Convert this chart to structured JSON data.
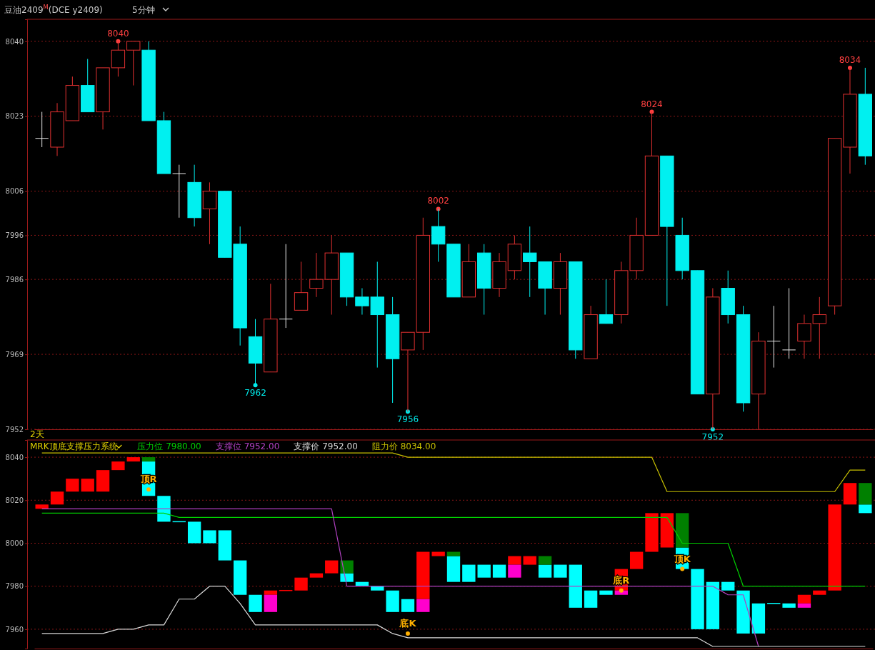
{
  "chart_data": [
    {
      "type": "candlestick",
      "title": "豆油2409$^{M}$(DCE y2409)",
      "subtitle": "5分钟",
      "categories": [
        null,
        null,
        null,
        null,
        null,
        null,
        null,
        null,
        null,
        null,
        null,
        null,
        null,
        null,
        null,
        null,
        null,
        null,
        null,
        null,
        null,
        null,
        null,
        null,
        null,
        null,
        null,
        null,
        null,
        null,
        null,
        null,
        null,
        null,
        null,
        null,
        null,
        null,
        null,
        null,
        null,
        null,
        null,
        null,
        null,
        null,
        null,
        null,
        null,
        null,
        null,
        null,
        null,
        null,
        null
      ],
      "ylim": [
        7952,
        8045
      ],
      "yticks": [
        8040,
        8023,
        8006,
        7996,
        7986,
        7969,
        7952
      ],
      "grid": "y",
      "tick_labels": "y",
      "ohlc": [
        [
          8018,
          8024,
          8016,
          8018
        ],
        [
          8016,
          8026,
          8014,
          8024
        ],
        [
          8022,
          8032,
          8022,
          8030
        ],
        [
          8030,
          8036,
          8024,
          8024
        ],
        [
          8024,
          8034,
          8020,
          8034
        ],
        [
          8034,
          8040,
          8032,
          8038
        ],
        [
          8038,
          8040,
          8030,
          8040
        ],
        [
          8038,
          8040,
          8022,
          8022
        ],
        [
          8022,
          8024,
          8010,
          8010
        ],
        [
          8010,
          8012,
          8000,
          8010
        ],
        [
          8008,
          8012,
          7998,
          8000
        ],
        [
          8002,
          8008,
          7994,
          8006
        ],
        [
          8006,
          8006,
          7991,
          7991
        ],
        [
          7994,
          7998,
          7971,
          7975
        ],
        [
          7973,
          7977,
          7962,
          7967
        ],
        [
          7965,
          7985,
          7965,
          7977
        ],
        [
          7977,
          7994,
          7975,
          7977
        ],
        [
          7979,
          7990,
          7979,
          7983
        ],
        [
          7984,
          7992,
          7982,
          7986
        ],
        [
          7986,
          7996,
          7978,
          7992
        ],
        [
          7992,
          7992,
          7980,
          7982
        ],
        [
          7982,
          7984,
          7978,
          7980
        ],
        [
          7982,
          7990,
          7966,
          7978
        ],
        [
          7978,
          7982,
          7958,
          7968
        ],
        [
          7970,
          7974,
          7956,
          7974
        ],
        [
          7974,
          8000,
          7970,
          7996
        ],
        [
          7998,
          8002,
          7990,
          7994
        ],
        [
          7994,
          7994,
          7982,
          7982
        ],
        [
          7982,
          7994,
          7982,
          7990
        ],
        [
          7992,
          7994,
          7978,
          7984
        ],
        [
          7984,
          7992,
          7982,
          7990
        ],
        [
          7988,
          7996,
          7986,
          7994
        ],
        [
          7992,
          7998,
          7982,
          7990
        ],
        [
          7990,
          7990,
          7978,
          7984
        ],
        [
          7984,
          7992,
          7978,
          7990
        ],
        [
          7990,
          7990,
          7968,
          7970
        ],
        [
          7968,
          7980,
          7968,
          7978
        ],
        [
          7978,
          7986,
          7976,
          7976
        ],
        [
          7978,
          7990,
          7976,
          7988
        ],
        [
          7988,
          8000,
          7986,
          7996
        ],
        [
          7996,
          8024,
          7996,
          8014
        ],
        [
          8014,
          8014,
          7980,
          7998
        ],
        [
          7996,
          8000,
          7986,
          7988
        ],
        [
          7988,
          7988,
          7960,
          7960
        ],
        [
          7960,
          7984,
          7952,
          7982
        ],
        [
          7984,
          7988,
          7976,
          7978
        ],
        [
          7978,
          7980,
          7956,
          7958
        ],
        [
          7960,
          7974,
          7952,
          7972
        ],
        [
          7972,
          7980,
          7966,
          7972
        ],
        [
          7970,
          7984,
          7968,
          7970
        ],
        [
          7972,
          7978,
          7968,
          7976
        ],
        [
          7976,
          7982,
          7968,
          7978
        ],
        [
          7980,
          8018,
          7978,
          8018
        ],
        [
          8016,
          8034,
          8010,
          8028
        ],
        [
          8028,
          8034,
          8012,
          8014
        ]
      ],
      "colors": [
        "#e8e8e8",
        "#e03030",
        "#e03030",
        "#00f0f0",
        "#e03030",
        "#e03030",
        "#e03030",
        "#00f0f0",
        "#00f0f0",
        "#e8e8e8",
        "#00f0f0",
        "#e03030",
        "#00f0f0",
        "#00f0f0",
        "#00f0f0",
        "#e03030",
        "#e8e8e8",
        "#e03030",
        "#e03030",
        "#e03030",
        "#00f0f0",
        "#00f0f0",
        "#00f0f0",
        "#00f0f0",
        "#e03030",
        "#e03030",
        "#00f0f0",
        "#00f0f0",
        "#e03030",
        "#00f0f0",
        "#e03030",
        "#e03030",
        "#00f0f0",
        "#00f0f0",
        "#e03030",
        "#00f0f0",
        "#e03030",
        "#00f0f0",
        "#e03030",
        "#e03030",
        "#e03030",
        "#00f0f0",
        "#00f0f0",
        "#00f0f0",
        "#e03030",
        "#00f0f0",
        "#00f0f0",
        "#e03030",
        "#e8e8e8",
        "#e8e8e8",
        "#e03030",
        "#e03030",
        "#e03030",
        "#e03030",
        "#00f0f0"
      ],
      "series": [
        {
          "type": "scatter",
          "marker": "circle",
          "colors": [
            null,
            null,
            null,
            null,
            null,
            "#ff4040",
            null,
            null,
            null,
            null,
            null,
            null,
            null,
            null,
            "#00e8e8",
            null,
            null,
            null,
            null,
            null,
            null,
            null,
            null,
            null,
            "#00e8e8",
            null,
            "#ff4040",
            null,
            null,
            null,
            null,
            null,
            null,
            null,
            null,
            null,
            null,
            null,
            null,
            null,
            "#ff4040",
            null,
            null,
            null,
            "#00e8e8",
            null,
            null,
            null,
            null,
            null,
            null,
            null,
            null,
            "#ff4040",
            null
          ],
          "values": [
            null,
            null,
            null,
            null,
            null,
            8040,
            null,
            null,
            null,
            null,
            null,
            null,
            null,
            null,
            7962,
            null,
            null,
            null,
            null,
            null,
            null,
            null,
            null,
            null,
            7956,
            null,
            8002,
            null,
            null,
            null,
            null,
            null,
            null,
            null,
            null,
            null,
            null,
            null,
            null,
            null,
            8024,
            null,
            null,
            null,
            7952,
            null,
            null,
            null,
            null,
            null,
            null,
            null,
            null,
            8034,
            null
          ],
          "value_labels": [
            null,
            null,
            null,
            null,
            null,
            "8040",
            null,
            null,
            null,
            null,
            null,
            null,
            null,
            null,
            "7962",
            null,
            null,
            null,
            null,
            null,
            null,
            null,
            null,
            null,
            "7956",
            null,
            "8002",
            null,
            null,
            null,
            null,
            null,
            null,
            null,
            null,
            null,
            null,
            null,
            null,
            null,
            "8024",
            null,
            null,
            null,
            "7952",
            null,
            null,
            null,
            null,
            null,
            null,
            null,
            null,
            "8034",
            null
          ]
        }
      ],
      "annotations": [
        "2天"
      ]
    },
    {
      "type": "bar",
      "legend_title": "MRK顶底支撑压力系统",
      "legend": "top left",
      "categories": [
        null,
        null,
        null,
        null,
        null,
        null,
        null,
        null,
        null,
        null,
        null,
        null,
        null,
        null,
        null,
        null,
        null,
        null,
        null,
        null,
        null,
        null,
        null,
        null,
        null,
        null,
        null,
        null,
        null,
        null,
        null,
        null,
        null,
        null,
        null,
        null,
        null,
        null,
        null,
        null,
        null,
        null,
        null,
        null,
        null,
        null,
        null,
        null,
        null,
        null,
        null,
        null,
        null,
        null,
        null
      ],
      "ylim": [
        7951,
        8048
      ],
      "yticks": [
        8040,
        8020,
        8000,
        7980,
        7960
      ],
      "grid": "y",
      "tick_labels": "y",
      "series": [
        {
          "type": "bar",
          "base": [
            8016,
            8018,
            8024,
            8024,
            8024,
            8034,
            8038,
            8022,
            8010,
            8010,
            8000,
            8000,
            7992,
            7976,
            7968,
            7976,
            7978,
            7978,
            7984,
            7986,
            7982,
            7980,
            7978,
            7968,
            7968,
            7974,
            7994,
            7982,
            7982,
            7984,
            7984,
            7990,
            7990,
            7984,
            7984,
            7970,
            7970,
            7976,
            7978,
            7988,
            7996,
            7998,
            7988,
            7960,
            7960,
            7978,
            7958,
            7958,
            7972,
            7970,
            7972,
            7976,
            7978,
            8018,
            8014
          ],
          "values": [
            2,
            6,
            6,
            6,
            10,
            4,
            2,
            16,
            12,
            0,
            10,
            6,
            14,
            16,
            8,
            2,
            0,
            6,
            2,
            6,
            4,
            2,
            2,
            10,
            6,
            22,
            2,
            12,
            8,
            6,
            6,
            4,
            4,
            6,
            6,
            20,
            8,
            2,
            10,
            8,
            18,
            16,
            10,
            28,
            22,
            4,
            20,
            14,
            0,
            2,
            4,
            2,
            40,
            10,
            4
          ],
          "colors": [
            "#ff0000",
            "#ff0000",
            "#ff0000",
            "#ff0000",
            "#ff0000",
            "#ff0000",
            "#ff0000",
            "#00ffff",
            "#00ffff",
            "#00ffff",
            "#00ffff",
            "#00ffff",
            "#00ffff",
            "#00ffff",
            "#00ffff",
            "#ff0000",
            "#ff0000",
            "#ff0000",
            "#ff0000",
            "#ff0000",
            "#00ffff",
            "#00ffff",
            "#00ffff",
            "#00ffff",
            "#00ffff",
            "#ff0000",
            "#ff0000",
            "#00ffff",
            "#00ffff",
            "#00ffff",
            "#00ffff",
            "#ff0000",
            "#ff0000",
            "#00ffff",
            "#00ffff",
            "#00ffff",
            "#00ffff",
            "#00ffff",
            "#ff0000",
            "#ff0000",
            "#ff0000",
            "#ff0000",
            "#00ffff",
            "#00ffff",
            "#00ffff",
            "#00ffff",
            "#00ffff",
            "#00ffff",
            "#00ffff",
            "#00ffff",
            "#ff0000",
            "#ff0000",
            "#ff0000",
            "#ff0000",
            "#00ffff"
          ]
        },
        {
          "type": "bar",
          "base": [
            null,
            null,
            null,
            null,
            null,
            null,
            null,
            8038,
            null,
            null,
            null,
            null,
            null,
            null,
            null,
            7968,
            null,
            null,
            null,
            null,
            7986,
            null,
            null,
            null,
            null,
            7968,
            null,
            7994,
            null,
            null,
            null,
            7984,
            null,
            7990,
            null,
            null,
            null,
            null,
            7976,
            null,
            null,
            null,
            7998,
            null,
            null,
            null,
            null,
            null,
            null,
            null,
            7970,
            null,
            null,
            null,
            8018
          ],
          "values": [
            null,
            null,
            null,
            null,
            null,
            null,
            null,
            2,
            null,
            null,
            null,
            null,
            null,
            null,
            null,
            8,
            null,
            null,
            null,
            null,
            6,
            null,
            null,
            null,
            null,
            6,
            null,
            2,
            null,
            null,
            null,
            6,
            null,
            4,
            null,
            null,
            null,
            null,
            2,
            null,
            null,
            null,
            16,
            null,
            null,
            null,
            null,
            null,
            null,
            null,
            2,
            null,
            null,
            null,
            10
          ],
          "colors": [
            null,
            null,
            null,
            null,
            null,
            null,
            null,
            "#008000",
            null,
            null,
            null,
            null,
            null,
            null,
            null,
            "#ff00cc",
            null,
            null,
            null,
            null,
            "#008000",
            null,
            null,
            null,
            null,
            "#ff00cc",
            null,
            "#008000",
            null,
            null,
            null,
            "#ff00cc",
            null,
            "#008000",
            null,
            null,
            null,
            null,
            "#ff00cc",
            null,
            null,
            null,
            "#008000",
            null,
            null,
            null,
            null,
            null,
            null,
            null,
            "#ff00cc",
            null,
            null,
            null,
            "#008000"
          ]
        },
        {
          "type": "line",
          "name": "压力位 7980.00",
          "color": "#00d000",
          "values": [
            8014,
            8014,
            8014,
            8014,
            8014,
            8014,
            8014,
            8014,
            8014,
            8012,
            8012,
            8012,
            8012,
            8012,
            8012,
            8012,
            8012,
            8012,
            8012,
            8012,
            8012,
            8012,
            8012,
            8012,
            8012,
            8012,
            8012,
            8012,
            8012,
            8012,
            8012,
            8012,
            8012,
            8012,
            8012,
            8012,
            8012,
            8012,
            8012,
            8012,
            8012,
            8012,
            8000,
            8000,
            8000,
            8000,
            7980,
            7980,
            7980,
            7980,
            7980,
            7980,
            7980,
            7980,
            7980
          ]
        },
        {
          "type": "line",
          "name": "支撑位 7952.00",
          "color": "#b040c0",
          "values": [
            8016,
            8016,
            8016,
            8016,
            8016,
            8016,
            8016,
            8016,
            8016,
            8016,
            8016,
            8016,
            8016,
            8016,
            8016,
            8016,
            8016,
            8016,
            8016,
            8016,
            7980,
            7980,
            7980,
            7980,
            7980,
            7980,
            7980,
            7980,
            7980,
            7980,
            7980,
            7980,
            7980,
            7980,
            7980,
            7980,
            7980,
            7980,
            7980,
            7980,
            7980,
            7980,
            7980,
            7980,
            7980,
            7976,
            7976,
            7952,
            null,
            null,
            null,
            null,
            null,
            null,
            null
          ]
        },
        {
          "type": "line",
          "name": "支撑价 7952.00",
          "color": "#d8d8d8",
          "values": [
            7958,
            7958,
            7958,
            7958,
            7958,
            7960,
            7960,
            7962,
            7962,
            7974,
            7974,
            7980,
            7980,
            7972,
            7962,
            7962,
            7962,
            7962,
            7962,
            7962,
            7962,
            7962,
            7962,
            7958,
            7956,
            7956,
            7956,
            7956,
            7956,
            7956,
            7956,
            7956,
            7956,
            7956,
            7956,
            7956,
            7956,
            7956,
            7956,
            7956,
            7956,
            7956,
            7956,
            7956,
            7952,
            7952,
            7952,
            7952,
            7952,
            7952,
            7952,
            7952,
            7952,
            7952,
            7952
          ]
        },
        {
          "type": "line",
          "name": "阻力价 8034.00",
          "color": "#c8c000",
          "values": [
            8042,
            8042,
            8042,
            8042,
            8042,
            8042,
            8042,
            8042,
            8042,
            8042,
            8042,
            8042,
            8042,
            8042,
            8042,
            8042,
            8042,
            8042,
            8042,
            8042,
            8042,
            8042,
            8042,
            8042,
            8040,
            8040,
            8040,
            8040,
            8040,
            8040,
            8040,
            8040,
            8040,
            8040,
            8040,
            8040,
            8040,
            8040,
            8040,
            8040,
            8040,
            8024,
            8024,
            8024,
            8024,
            8024,
            8024,
            8024,
            8024,
            8024,
            8024,
            8024,
            8024,
            8034,
            8034
          ]
        },
        {
          "type": "scatter",
          "marker": "circle",
          "color": "#ffb000",
          "values": [
            null,
            null,
            null,
            null,
            null,
            null,
            null,
            8025,
            null,
            null,
            null,
            null,
            null,
            null,
            null,
            null,
            null,
            null,
            null,
            null,
            null,
            null,
            null,
            null,
            7958,
            null,
            null,
            null,
            null,
            null,
            null,
            null,
            null,
            null,
            null,
            null,
            null,
            null,
            7978,
            null,
            null,
            null,
            7988,
            null,
            null,
            null,
            null,
            null,
            null,
            null,
            null,
            null,
            null,
            null,
            null
          ],
          "value_labels": [
            null,
            null,
            null,
            null,
            null,
            null,
            null,
            "顶R",
            null,
            null,
            null,
            null,
            null,
            null,
            null,
            null,
            null,
            null,
            null,
            null,
            null,
            null,
            null,
            null,
            "底K",
            null,
            null,
            null,
            null,
            null,
            null,
            null,
            null,
            null,
            null,
            null,
            null,
            null,
            "底R",
            null,
            null,
            null,
            "顶K",
            null,
            null,
            null,
            null,
            null,
            null,
            null,
            null,
            null,
            null,
            null,
            null
          ]
        }
      ]
    }
  ]
}
